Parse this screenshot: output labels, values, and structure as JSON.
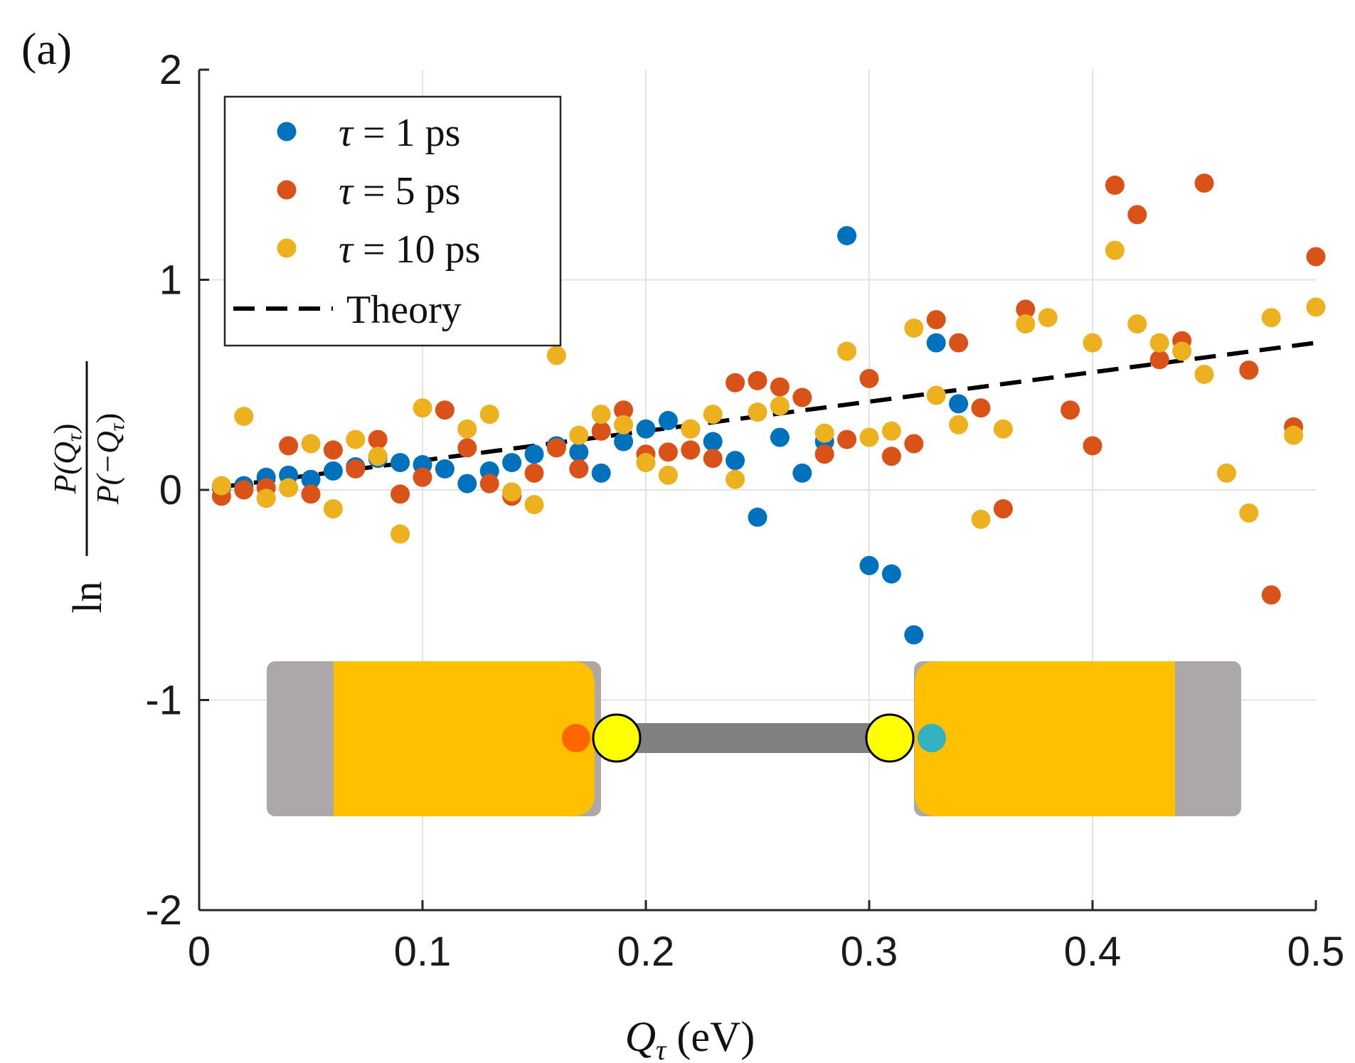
{
  "panel_label": "(a)",
  "chart_data": {
    "type": "scatter",
    "xlabel": "Q_τ (eV)",
    "xlabel_parts": {
      "symbol": "Q",
      "subscript": "τ",
      "unit": " (eV)"
    },
    "ylabel": "ln P(Q_τ)/P(−Q_τ)",
    "ylabel_parts": {
      "ln": "ln",
      "num": "P(Q",
      "den": "P(−Q",
      "sub": "τ",
      "close": ")"
    },
    "xlim": [
      0,
      0.5
    ],
    "ylim": [
      -2,
      2
    ],
    "xticks": [
      0,
      0.1,
      0.2,
      0.3,
      0.4,
      0.5
    ],
    "xtick_labels": [
      "0",
      "0.1",
      "0.2",
      "0.3",
      "0.4",
      "0.5"
    ],
    "yticks": [
      -2,
      -1,
      0,
      1,
      2
    ],
    "ytick_labels": [
      "-2",
      "-1",
      "0",
      "1",
      "2"
    ],
    "grid": true,
    "legend_position": "top-left",
    "series": [
      {
        "name": "τ = 1 ps",
        "label_prefix": "τ",
        "label_rest": " = 1 ps",
        "color": "#0072BD",
        "x": [
          0.01,
          0.02,
          0.03,
          0.04,
          0.05,
          0.06,
          0.07,
          0.08,
          0.09,
          0.1,
          0.11,
          0.12,
          0.13,
          0.14,
          0.15,
          0.16,
          0.17,
          0.18,
          0.19,
          0.2,
          0.21,
          0.22,
          0.23,
          0.24,
          0.25,
          0.26,
          0.27,
          0.28,
          0.29,
          0.3,
          0.31,
          0.32,
          0.33,
          0.34
        ],
        "y": [
          0.01,
          0.02,
          0.06,
          0.07,
          0.05,
          0.09,
          0.11,
          0.15,
          0.13,
          0.12,
          0.1,
          0.03,
          0.09,
          0.13,
          0.17,
          0.21,
          0.18,
          0.08,
          0.23,
          0.29,
          0.33,
          0.29,
          0.23,
          0.14,
          -0.13,
          0.25,
          0.08,
          0.23,
          1.21,
          -0.36,
          -0.4,
          -0.69,
          0.7,
          0.41
        ]
      },
      {
        "name": "τ = 5 ps",
        "label_prefix": "τ",
        "label_rest": " = 5 ps",
        "color": "#D95319",
        "x": [
          0.01,
          0.02,
          0.03,
          0.04,
          0.05,
          0.06,
          0.07,
          0.08,
          0.09,
          0.1,
          0.11,
          0.12,
          0.13,
          0.14,
          0.15,
          0.16,
          0.17,
          0.18,
          0.19,
          0.2,
          0.21,
          0.22,
          0.23,
          0.24,
          0.25,
          0.26,
          0.27,
          0.28,
          0.29,
          0.3,
          0.31,
          0.32,
          0.33,
          0.34,
          0.35,
          0.36,
          0.37,
          0.39,
          0.4,
          0.41,
          0.42,
          0.43,
          0.44,
          0.45,
          0.47,
          0.48,
          0.49,
          0.5
        ],
        "y": [
          -0.03,
          0.0,
          0.01,
          0.21,
          -0.02,
          0.19,
          0.1,
          0.24,
          -0.02,
          0.06,
          0.38,
          0.2,
          0.03,
          -0.03,
          0.08,
          0.2,
          0.1,
          0.28,
          0.38,
          0.17,
          0.18,
          0.19,
          0.15,
          0.51,
          0.52,
          0.49,
          0.44,
          0.17,
          0.24,
          0.53,
          0.16,
          0.22,
          0.81,
          0.7,
          0.39,
          -0.09,
          0.86,
          0.38,
          0.21,
          1.45,
          1.31,
          0.62,
          0.71,
          1.46,
          0.57,
          -0.5,
          0.3,
          1.11
        ]
      },
      {
        "name": "τ = 10 ps",
        "label_prefix": "τ",
        "label_rest": " = 10 ps",
        "color": "#EDB120",
        "x": [
          0.01,
          0.02,
          0.03,
          0.04,
          0.05,
          0.06,
          0.07,
          0.08,
          0.09,
          0.1,
          0.12,
          0.13,
          0.14,
          0.15,
          0.16,
          0.17,
          0.18,
          0.19,
          0.2,
          0.21,
          0.22,
          0.23,
          0.24,
          0.25,
          0.26,
          0.28,
          0.29,
          0.3,
          0.31,
          0.32,
          0.33,
          0.34,
          0.35,
          0.36,
          0.37,
          0.38,
          0.4,
          0.41,
          0.42,
          0.43,
          0.44,
          0.45,
          0.46,
          0.47,
          0.48,
          0.49,
          0.5
        ],
        "y": [
          0.02,
          0.35,
          -0.04,
          0.01,
          0.22,
          -0.09,
          0.24,
          0.16,
          -0.21,
          0.39,
          0.29,
          0.36,
          -0.01,
          -0.07,
          0.64,
          0.26,
          0.36,
          0.31,
          0.13,
          0.07,
          0.29,
          0.36,
          0.05,
          0.37,
          0.4,
          0.27,
          0.66,
          0.25,
          0.28,
          0.77,
          0.45,
          0.31,
          -0.14,
          0.29,
          0.79,
          0.82,
          0.7,
          1.14,
          0.79,
          0.7,
          0.66,
          0.55,
          0.08,
          -0.11,
          0.82,
          0.26,
          0.87
        ]
      }
    ],
    "theory": {
      "name": "Theory",
      "x": [
        0.01,
        0.5
      ],
      "y": [
        0.014,
        0.7
      ],
      "color": "#000000",
      "style": "dashed"
    }
  },
  "inset": {
    "lead_color": "#FFC000",
    "contact_color": "#ABA8A7",
    "wire_color": "#808080",
    "atom_color": "#FFFF00",
    "left_dot_color": "#FF6600",
    "right_dot_color": "#33B2BF"
  }
}
